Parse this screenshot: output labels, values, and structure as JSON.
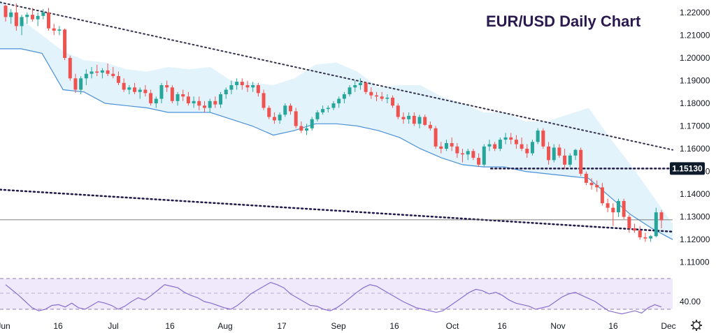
{
  "chart_data": [
    {
      "type": "candlestick",
      "title": "EUR/USD Daily Chart",
      "ylim": [
        1.105,
        1.2255
      ],
      "y_ticks": [
        "1.22000",
        "1.21000",
        "1.20000",
        "1.19000",
        "1.18000",
        "1.17000",
        "1.16000",
        "1.15000",
        "1.14000",
        "1.13000",
        "1.12000",
        "1.11000"
      ],
      "x_ticks": [
        "Jun",
        "16",
        "Jul",
        "16",
        "Aug",
        "17",
        "Sep",
        "16",
        "Oct",
        "16",
        "Nov",
        "16",
        "Dec"
      ],
      "current_price_label": "1.15130",
      "current_price": 1.1513,
      "horizontal_line": 1.1287,
      "candles_ohlc": [
        [
          1.223,
          1.2235,
          1.216,
          1.218
        ],
        [
          1.218,
          1.2215,
          1.215,
          1.22
        ],
        [
          1.22,
          1.224,
          1.212,
          1.214
        ],
        [
          1.214,
          1.219,
          1.21,
          1.218
        ],
        [
          1.218,
          1.22,
          1.215,
          1.219
        ],
        [
          1.219,
          1.222,
          1.216,
          1.217
        ],
        [
          1.217,
          1.22,
          1.214,
          1.2185
        ],
        [
          1.2185,
          1.2215,
          1.217,
          1.22
        ],
        [
          1.22,
          1.222,
          1.212,
          1.213
        ],
        [
          1.213,
          1.215,
          1.21,
          1.212
        ],
        [
          1.212,
          1.214,
          1.21,
          1.2125
        ],
        [
          1.2125,
          1.213,
          1.199,
          1.2
        ],
        [
          1.2,
          1.201,
          1.19,
          1.191
        ],
        [
          1.191,
          1.193,
          1.1845,
          1.186
        ],
        [
          1.186,
          1.192,
          1.184,
          1.191
        ],
        [
          1.191,
          1.195,
          1.188,
          1.193
        ],
        [
          1.193,
          1.196,
          1.191,
          1.194
        ],
        [
          1.194,
          1.197,
          1.192,
          1.1935
        ],
        [
          1.1935,
          1.1955,
          1.191,
          1.1945
        ],
        [
          1.1945,
          1.1975,
          1.192,
          1.193
        ],
        [
          1.193,
          1.196,
          1.191,
          1.192
        ],
        [
          1.192,
          1.194,
          1.188,
          1.189
        ],
        [
          1.189,
          1.191,
          1.185,
          1.186
        ],
        [
          1.186,
          1.188,
          1.184,
          1.187
        ],
        [
          1.187,
          1.189,
          1.184,
          1.185
        ],
        [
          1.185,
          1.187,
          1.182,
          1.186
        ],
        [
          1.186,
          1.188,
          1.183,
          1.1845
        ],
        [
          1.1845,
          1.186,
          1.179,
          1.18
        ],
        [
          1.18,
          1.183,
          1.178,
          1.182
        ],
        [
          1.182,
          1.189,
          1.18,
          1.188
        ],
        [
          1.188,
          1.19,
          1.185,
          1.187
        ],
        [
          1.187,
          1.188,
          1.18,
          1.181
        ],
        [
          1.181,
          1.185,
          1.179,
          1.184
        ],
        [
          1.184,
          1.186,
          1.181,
          1.183
        ],
        [
          1.183,
          1.185,
          1.179,
          1.18
        ],
        [
          1.18,
          1.183,
          1.178,
          1.181
        ],
        [
          1.181,
          1.183,
          1.177,
          1.179
        ],
        [
          1.179,
          1.181,
          1.176,
          1.178
        ],
        [
          1.178,
          1.182,
          1.176,
          1.181
        ],
        [
          1.181,
          1.183,
          1.178,
          1.1795
        ],
        [
          1.1795,
          1.185,
          1.178,
          1.184
        ],
        [
          1.184,
          1.187,
          1.182,
          1.186
        ],
        [
          1.186,
          1.19,
          1.184,
          1.188
        ],
        [
          1.188,
          1.191,
          1.186,
          1.1895
        ],
        [
          1.1895,
          1.191,
          1.186,
          1.188
        ],
        [
          1.188,
          1.19,
          1.185,
          1.187
        ],
        [
          1.187,
          1.1895,
          1.185,
          1.188
        ],
        [
          1.188,
          1.189,
          1.183,
          1.1845
        ],
        [
          1.1845,
          1.186,
          1.177,
          1.178
        ],
        [
          1.178,
          1.179,
          1.173,
          1.174
        ],
        [
          1.174,
          1.176,
          1.171,
          1.1725
        ],
        [
          1.1725,
          1.176,
          1.171,
          1.175
        ],
        [
          1.175,
          1.18,
          1.174,
          1.179
        ],
        [
          1.179,
          1.18,
          1.175,
          1.1765
        ],
        [
          1.1765,
          1.178,
          1.169,
          1.17
        ],
        [
          1.17,
          1.172,
          1.167,
          1.168
        ],
        [
          1.168,
          1.171,
          1.166,
          1.169
        ],
        [
          1.169,
          1.174,
          1.168,
          1.173
        ],
        [
          1.173,
          1.177,
          1.172,
          1.176
        ],
        [
          1.176,
          1.179,
          1.175,
          1.1775
        ],
        [
          1.1775,
          1.179,
          1.176,
          1.178
        ],
        [
          1.178,
          1.181,
          1.177,
          1.18
        ],
        [
          1.18,
          1.183,
          1.178,
          1.182
        ],
        [
          1.182,
          1.185,
          1.18,
          1.184
        ],
        [
          1.184,
          1.188,
          1.183,
          1.187
        ],
        [
          1.187,
          1.19,
          1.185,
          1.188
        ],
        [
          1.188,
          1.191,
          1.186,
          1.189
        ],
        [
          1.189,
          1.1895,
          1.184,
          1.185
        ],
        [
          1.185,
          1.187,
          1.182,
          1.1835
        ],
        [
          1.1835,
          1.185,
          1.181,
          1.183
        ],
        [
          1.183,
          1.185,
          1.181,
          1.182
        ],
        [
          1.182,
          1.184,
          1.18,
          1.1825
        ],
        [
          1.1825,
          1.1835,
          1.178,
          1.179
        ],
        [
          1.179,
          1.18,
          1.173,
          1.174
        ],
        [
          1.174,
          1.176,
          1.171,
          1.173
        ],
        [
          1.173,
          1.176,
          1.171,
          1.1745
        ],
        [
          1.1745,
          1.176,
          1.17,
          1.171
        ],
        [
          1.171,
          1.175,
          1.169,
          1.174
        ],
        [
          1.174,
          1.175,
          1.17,
          1.1705
        ],
        [
          1.1705,
          1.172,
          1.168,
          1.169
        ],
        [
          1.169,
          1.17,
          1.16,
          1.161
        ],
        [
          1.161,
          1.163,
          1.158,
          1.16
        ],
        [
          1.16,
          1.164,
          1.159,
          1.1625
        ],
        [
          1.1625,
          1.165,
          1.159,
          1.161
        ],
        [
          1.161,
          1.1625,
          1.156,
          1.158
        ],
        [
          1.158,
          1.16,
          1.154,
          1.1575
        ],
        [
          1.1575,
          1.16,
          1.155,
          1.159
        ],
        [
          1.159,
          1.16,
          1.155,
          1.156
        ],
        [
          1.156,
          1.158,
          1.152,
          1.153
        ],
        [
          1.153,
          1.162,
          1.152,
          1.161
        ],
        [
          1.161,
          1.164,
          1.159,
          1.162
        ],
        [
          1.162,
          1.163,
          1.159,
          1.16
        ],
        [
          1.16,
          1.165,
          1.159,
          1.164
        ],
        [
          1.164,
          1.167,
          1.162,
          1.165
        ],
        [
          1.165,
          1.167,
          1.162,
          1.164
        ],
        [
          1.164,
          1.166,
          1.16,
          1.162
        ],
        [
          1.162,
          1.165,
          1.159,
          1.16
        ],
        [
          1.16,
          1.162,
          1.156,
          1.158
        ],
        [
          1.158,
          1.164,
          1.157,
          1.163
        ],
        [
          1.163,
          1.169,
          1.162,
          1.168
        ],
        [
          1.168,
          1.169,
          1.16,
          1.161
        ],
        [
          1.161,
          1.163,
          1.153,
          1.155
        ],
        [
          1.155,
          1.162,
          1.154,
          1.1605
        ],
        [
          1.1605,
          1.162,
          1.156,
          1.157
        ],
        [
          1.157,
          1.16,
          1.151,
          1.153
        ],
        [
          1.153,
          1.158,
          1.152,
          1.157
        ],
        [
          1.157,
          1.16,
          1.155,
          1.1595
        ],
        [
          1.1595,
          1.1605,
          1.148,
          1.149
        ],
        [
          1.149,
          1.15,
          1.144,
          1.145
        ],
        [
          1.145,
          1.147,
          1.142,
          1.144
        ],
        [
          1.144,
          1.146,
          1.141,
          1.143
        ],
        [
          1.143,
          1.145,
          1.135,
          1.136
        ],
        [
          1.136,
          1.138,
          1.132,
          1.134
        ],
        [
          1.134,
          1.136,
          1.126,
          1.132
        ],
        [
          1.132,
          1.138,
          1.13,
          1.137
        ],
        [
          1.137,
          1.138,
          1.129,
          1.13
        ],
        [
          1.13,
          1.131,
          1.123,
          1.125
        ],
        [
          1.125,
          1.127,
          1.123,
          1.124
        ],
        [
          1.124,
          1.126,
          1.12,
          1.121
        ],
        [
          1.121,
          1.123,
          1.119,
          1.1205
        ],
        [
          1.1205,
          1.122,
          1.119,
          1.1215
        ],
        [
          1.1215,
          1.134,
          1.121,
          1.132
        ],
        [
          1.132,
          1.133,
          1.125,
          1.1285
        ]
      ],
      "band_upper": [
        1.2255,
        1.217,
        1.21,
        1.203,
        1.199,
        1.198,
        1.195,
        1.194,
        1.196,
        1.195,
        1.196,
        1.19,
        1.189,
        1.188,
        1.191,
        1.197,
        1.198,
        1.194,
        1.187,
        1.188,
        1.188,
        1.183,
        1.18,
        1.176,
        1.176,
        1.172,
        1.172,
        1.175,
        1.178,
        1.165,
        1.153,
        1.14,
        1.127
      ],
      "band_lower": [
        1.204,
        1.204,
        1.202,
        1.186,
        1.185,
        1.18,
        1.179,
        1.178,
        1.176,
        1.176,
        1.176,
        1.173,
        1.17,
        1.166,
        1.168,
        1.171,
        1.171,
        1.17,
        1.168,
        1.165,
        1.16,
        1.156,
        1.153,
        1.152,
        1.152,
        1.15,
        1.149,
        1.148,
        1.147,
        1.139,
        1.131,
        1.125,
        1.12
      ],
      "trendlines": [
        {
          "from": 1.2245,
          "to": 1.1595,
          "style": "dotted"
        },
        {
          "from": 1.142,
          "to": 1.1235,
          "style": "dotted"
        },
        {
          "level": 1.1513,
          "start_fraction": 0.73,
          "style": "dotted"
        }
      ]
    },
    {
      "type": "line",
      "indicator": "RSI",
      "y_tick_label": "40.00",
      "ylim": [
        22,
        82
      ],
      "levels": [
        30,
        70
      ],
      "values": [
        62,
        55,
        48,
        40,
        32,
        28,
        30,
        35,
        36,
        33,
        38,
        32,
        30,
        35,
        40,
        38,
        35,
        30,
        34,
        40,
        45,
        42,
        48,
        55,
        62,
        60,
        58,
        52,
        48,
        45,
        40,
        38,
        35,
        32,
        30,
        35,
        42,
        50,
        55,
        60,
        65,
        62,
        58,
        50,
        45,
        40,
        35,
        34,
        30,
        28,
        32,
        38,
        45,
        52,
        58,
        62,
        60,
        55,
        50,
        45,
        40,
        36,
        32,
        30,
        28,
        26,
        28,
        34,
        40,
        46,
        52,
        56,
        54,
        50,
        52,
        48,
        42,
        38,
        36,
        34,
        30,
        32,
        34,
        40,
        46,
        50,
        52,
        48,
        44,
        40,
        34,
        28,
        26,
        24,
        26,
        28,
        25,
        32,
        36,
        33
      ]
    }
  ]
}
